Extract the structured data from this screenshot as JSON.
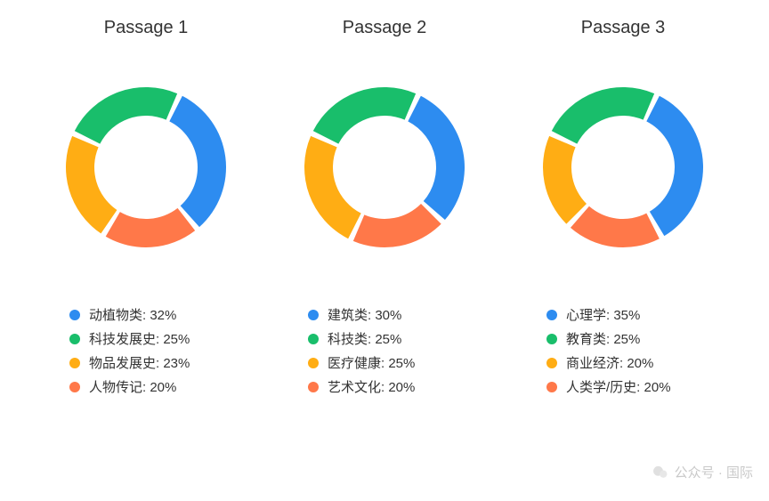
{
  "background_color": "#ffffff",
  "title_fontsize": 20,
  "title_color": "#333333",
  "legend_fontsize": 15,
  "legend_color": "#333333",
  "donut": {
    "outer_radius": 90,
    "inner_radius": 58,
    "gap_deg": 4,
    "start_angle_deg": -65
  },
  "palette": {
    "blue": "#2d8cf0",
    "green": "#19be6b",
    "yellow": "#ffad14",
    "orange": "#ff7849"
  },
  "charts": [
    {
      "title": "Passage 1",
      "slices": [
        {
          "label": "动植物类",
          "value": 32,
          "color": "#2d8cf0"
        },
        {
          "label": "科技发展史",
          "value": 25,
          "color": "#19be6b"
        },
        {
          "label": "物品发展史",
          "value": 23,
          "color": "#ffad14"
        },
        {
          "label": "人物传记",
          "value": 20,
          "color": "#ff7849"
        }
      ]
    },
    {
      "title": "Passage 2",
      "slices": [
        {
          "label": "建筑类",
          "value": 30,
          "color": "#2d8cf0"
        },
        {
          "label": "科技类",
          "value": 25,
          "color": "#19be6b"
        },
        {
          "label": "医疗健康",
          "value": 25,
          "color": "#ffad14"
        },
        {
          "label": "艺术文化",
          "value": 20,
          "color": "#ff7849"
        }
      ]
    },
    {
      "title": "Passage 3",
      "slices": [
        {
          "label": "心理学",
          "value": 35,
          "color": "#2d8cf0"
        },
        {
          "label": "教育类",
          "value": 25,
          "color": "#19be6b"
        },
        {
          "label": "商业经济",
          "value": 20,
          "color": "#ffad14"
        },
        {
          "label": "人类学/历史",
          "value": 20,
          "color": "#ff7849"
        }
      ]
    }
  ],
  "watermark": {
    "text": "公众号 · 国际",
    "icon": "wechat-icon",
    "color": "#888888"
  }
}
